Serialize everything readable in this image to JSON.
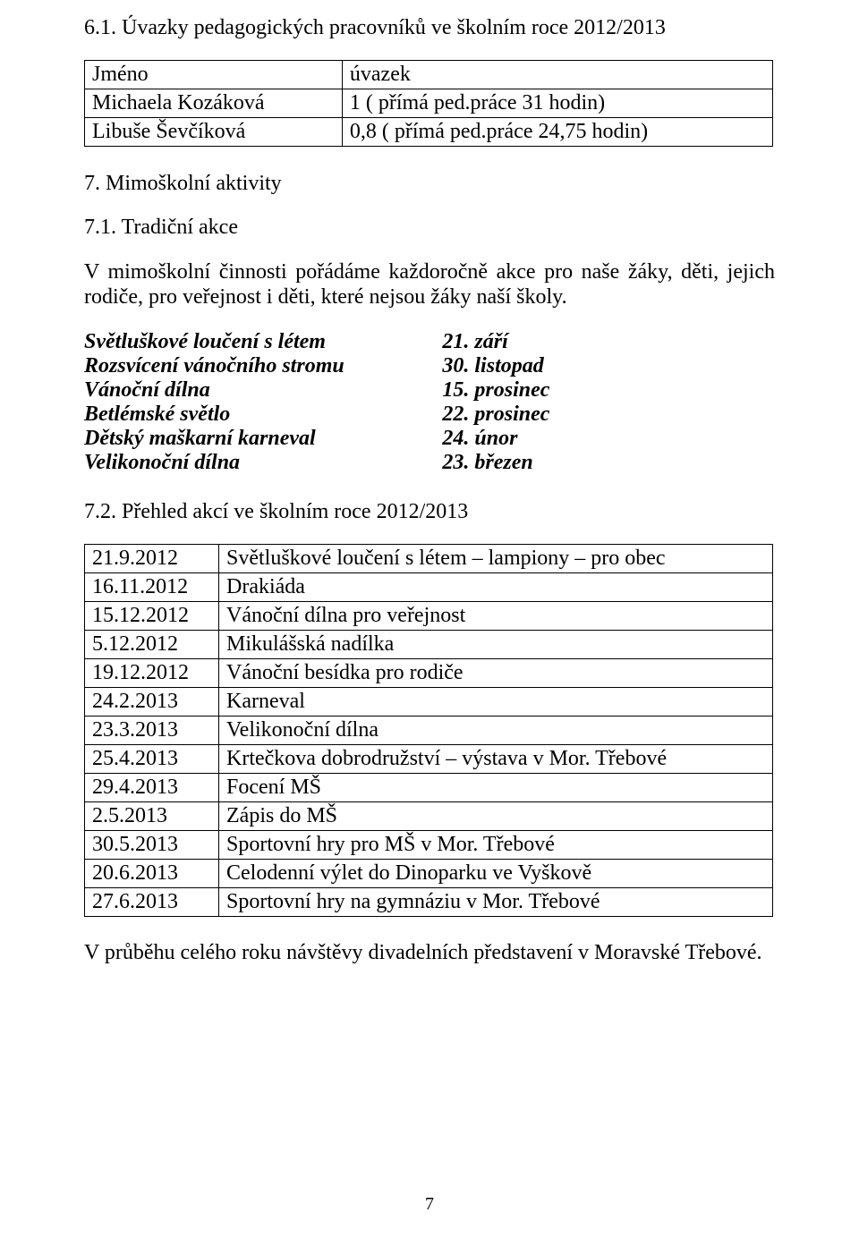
{
  "section61": {
    "title": "6.1. Úvazky pedagogických pracovníků ve školním roce 2012/2013",
    "table": {
      "header_name": "Jméno",
      "header_load": "úvazek",
      "rows": [
        {
          "name": "Michaela Kozáková",
          "load": "1     ( přímá ped.práce 31 hodin)"
        },
        {
          "name": "Libuše Ševčíková",
          "load": "0,8  ( přímá ped.práce 24,75 hodin)"
        }
      ]
    }
  },
  "section7": {
    "title": "7. Mimoškolní aktivity"
  },
  "section71": {
    "title": "7.1. Tradiční akce",
    "intro": "V mimoškolní činnosti pořádáme každoročně akce pro naše žáky, děti, jejich rodiče, pro veřejnost i děti, které nejsou žáky naší školy.",
    "events": [
      {
        "name": "Světluškové loučení s létem",
        "date": "21. září"
      },
      {
        "name": "Rozsvícení vánočního stromu",
        "date": "30. listopad"
      },
      {
        "name": "Vánoční dílna",
        "date": "15. prosinec"
      },
      {
        "name": "Betlémské světlo",
        "date": "22. prosinec"
      },
      {
        "name": "Dětský maškarní karneval",
        "date": "24. únor"
      },
      {
        "name": "Velikonoční dílna",
        "date": "23. březen"
      }
    ]
  },
  "section72": {
    "title": "7.2. Přehled akcí ve školním roce 2012/2013",
    "rows": [
      {
        "date": "21.9.2012",
        "desc": "Světluškové loučení s létem – lampiony – pro obec"
      },
      {
        "date": "16.11.2012",
        "desc": "Drakiáda"
      },
      {
        "date": "15.12.2012",
        "desc": "Vánoční dílna pro veřejnost"
      },
      {
        "date": "5.12.2012",
        "desc": "Mikulášská nadílka"
      },
      {
        "date": "19.12.2012",
        "desc": "Vánoční besídka pro rodiče"
      },
      {
        "date": "24.2.2013",
        "desc": "Karneval"
      },
      {
        "date": "23.3.2013",
        "desc": "Velikonoční dílna"
      },
      {
        "date": "25.4.2013",
        "desc": "Krtečkova dobrodružství – výstava v Mor. Třebové"
      },
      {
        "date": "29.4.2013",
        "desc": "Focení MŠ"
      },
      {
        "date": "2.5.2013",
        "desc": "Zápis do MŠ"
      },
      {
        "date": "30.5.2013",
        "desc": "Sportovní hry pro MŠ v Mor. Třebové"
      },
      {
        "date": "20.6.2013",
        "desc": "Celodenní výlet do Dinoparku ve Vyškově"
      },
      {
        "date": "27.6.2013",
        "desc": "Sportovní hry na gymnáziu v Mor. Třebové"
      }
    ]
  },
  "closing": {
    "text": "V průběhu celého roku návštěvy divadelních představení v Moravské Třebové."
  },
  "page_number": "7"
}
